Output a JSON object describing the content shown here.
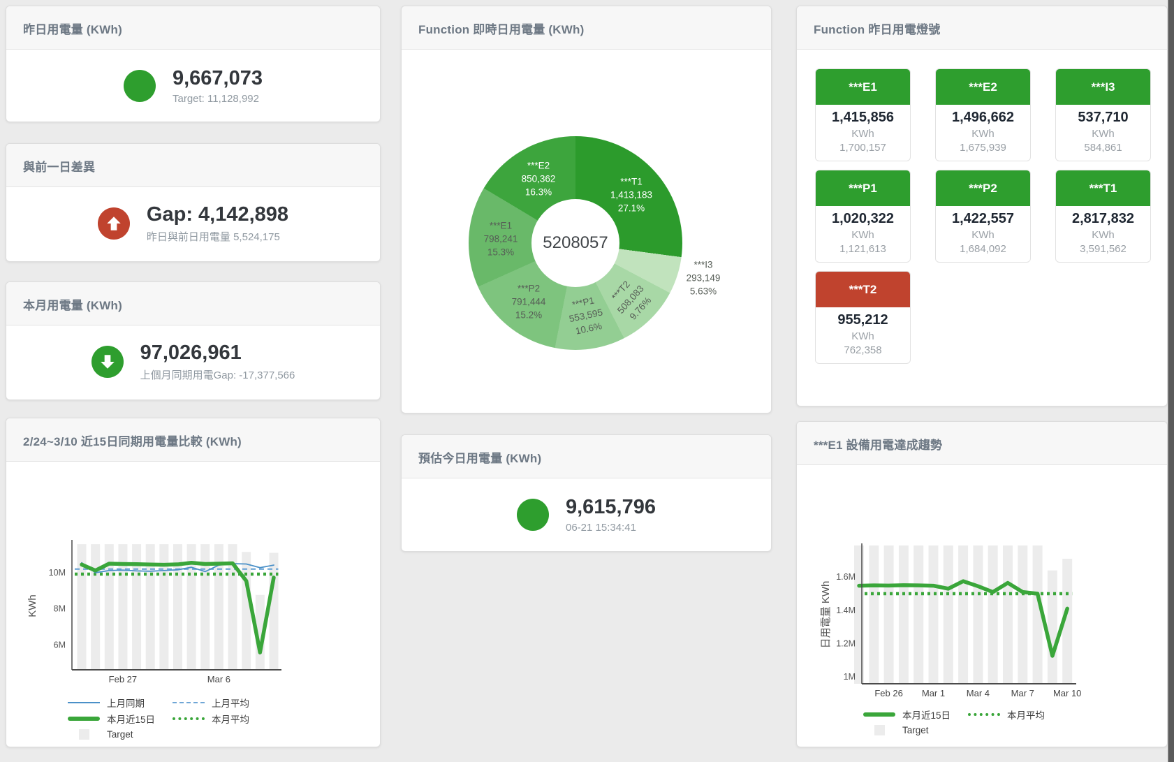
{
  "colors": {
    "green": "#2e9e2e",
    "red": "#c0432e",
    "blue_line": "#4a90c8",
    "blue_dashed": "#6fa6d6",
    "green_line": "#3aa63a",
    "target_bar": "#ececec"
  },
  "panels": {
    "yesterday": {
      "title": "昨日用電量 (KWh)",
      "value": "9,667,073",
      "subtitle": "Target: 11,128,992"
    },
    "gap": {
      "title": "與前一日差異",
      "value": "Gap: 4,142,898",
      "subtitle": "昨日與前日用電量 5,524,175"
    },
    "month": {
      "title": "本月用電量 (KWh)",
      "value": "97,026,961",
      "subtitle": "上個月同期用電Gap: -17,377,566"
    },
    "estimate": {
      "title": "預估今日用電量 (KWh)",
      "value": "9,615,796",
      "subtitle": "06-21 15:34:41"
    },
    "lights": {
      "title": "Function 昨日用電燈號",
      "cards": [
        {
          "label": "***E1",
          "value": "1,415,856",
          "unit": "KWh",
          "target": "1,700,157",
          "status": "green"
        },
        {
          "label": "***E2",
          "value": "1,496,662",
          "unit": "KWh",
          "target": "1,675,939",
          "status": "green"
        },
        {
          "label": "***I3",
          "value": "537,710",
          "unit": "KWh",
          "target": "584,861",
          "status": "green"
        },
        {
          "label": "***P1",
          "value": "1,020,322",
          "unit": "KWh",
          "target": "1,121,613",
          "status": "green"
        },
        {
          "label": "***P2",
          "value": "1,422,557",
          "unit": "KWh",
          "target": "1,684,092",
          "status": "green"
        },
        {
          "label": "***T1",
          "value": "2,817,832",
          "unit": "KWh",
          "target": "3,591,562",
          "status": "green"
        },
        {
          "label": "***T2",
          "value": "955,212",
          "unit": "KWh",
          "target": "762,358",
          "status": "red"
        }
      ]
    }
  },
  "chart_data": [
    {
      "id": "compare15",
      "type": "line+bar",
      "title": "2/24~3/10 近15日同期用電量比較 (KWh)",
      "ylabel": "KWh",
      "unit": "KWh (millions)",
      "x_categories": [
        "2/24",
        "2/25",
        "2/26",
        "2/27",
        "2/28",
        "3/1",
        "3/2",
        "3/3",
        "3/4",
        "3/5",
        "3/6",
        "3/7",
        "3/8",
        "3/9",
        "3/10"
      ],
      "x_ticks": [
        {
          "label": "Feb 27",
          "day": 4
        },
        {
          "label": "Mar 6",
          "day": 11
        }
      ],
      "y_ticks": [
        {
          "label": "10M",
          "v": 10
        },
        {
          "label": "8M",
          "v": 8
        },
        {
          "label": "6M",
          "v": 6
        }
      ],
      "ylim_m": [
        4.62,
        11.7
      ],
      "series": [
        {
          "name": "上月同期",
          "style": "line-thin",
          "color": "#4a90c8",
          "values_m": [
            10.55,
            10.0,
            10.12,
            10.14,
            10.1,
            10.08,
            10.12,
            10.16,
            10.3,
            10.06,
            10.42,
            10.5,
            10.48,
            10.28,
            10.42
          ]
        },
        {
          "name": "上月平均",
          "style": "line-dashed",
          "color": "#6fa6d6",
          "value_m": 10.2
        },
        {
          "name": "本月近15日",
          "style": "line-thick",
          "color": "#3aa63a",
          "values_m": [
            10.45,
            10.12,
            10.5,
            10.48,
            10.47,
            10.45,
            10.44,
            10.46,
            10.55,
            10.48,
            10.5,
            10.52,
            9.54,
            5.58,
            9.73
          ]
        },
        {
          "name": "本月平均",
          "style": "line-dotted",
          "color": "#3aa63a",
          "value_m": 9.92
        },
        {
          "name": "Target",
          "style": "bar",
          "color": "#ececec",
          "values_m": [
            11.58,
            11.58,
            11.58,
            11.58,
            11.58,
            11.58,
            11.58,
            11.58,
            11.58,
            11.58,
            11.58,
            11.58,
            11.15,
            8.77,
            11.1
          ]
        }
      ]
    },
    {
      "id": "realtime-donut",
      "type": "pie",
      "title": "Function 即時日用電量 (KWh)",
      "center_total": "5208057",
      "unit": "KWh",
      "slices": [
        {
          "name": "***T1",
          "value": "1,413,183",
          "value_num": 1413183,
          "pct": "27.1%",
          "share": 27.1,
          "color": "#2c9b2c",
          "label_style": "light"
        },
        {
          "name": "***I3",
          "value": "293,149",
          "value_num": 293149,
          "pct": "5.63%",
          "share": 5.63,
          "color": "#c1e3bd",
          "label_style": "dark"
        },
        {
          "name": "***T2",
          "value": "508,083",
          "value_num": 508083,
          "pct": "9.76%",
          "share": 9.76,
          "color": "#a8d8a6",
          "label_style": "dark"
        },
        {
          "name": "***P1",
          "value": "553,595",
          "value_num": 553595,
          "pct": "10.6%",
          "share": 10.6,
          "color": "#93ce93",
          "label_style": "dark"
        },
        {
          "name": "***P2",
          "value": "791,444",
          "value_num": 791444,
          "pct": "15.2%",
          "share": 15.2,
          "color": "#7ec47e",
          "label_style": "dark"
        },
        {
          "name": "***E1",
          "value": "798,241",
          "value_num": 798241,
          "pct": "15.3%",
          "share": 15.3,
          "color": "#69b969",
          "label_style": "dark"
        },
        {
          "name": "***E2",
          "value": "850,362",
          "value_num": 850362,
          "pct": "16.3%",
          "share": 16.3,
          "color": "#3da53d",
          "label_style": "light"
        }
      ]
    },
    {
      "id": "trend-e1",
      "type": "line+bar",
      "title": "***E1 設備用電達成趨勢",
      "ylabel": "日用電量 KWh",
      "unit": "KWh (millions)",
      "x_categories": [
        "2/24",
        "2/25",
        "2/26",
        "2/27",
        "2/28",
        "3/1",
        "3/2",
        "3/3",
        "3/4",
        "3/5",
        "3/6",
        "3/7",
        "3/8",
        "3/9",
        "3/10"
      ],
      "x_ticks": [
        {
          "label": "Feb 26",
          "day": 3
        },
        {
          "label": "Mar 1",
          "day": 6
        },
        {
          "label": "Mar 4",
          "day": 9
        },
        {
          "label": "Mar 7",
          "day": 12
        },
        {
          "label": "Mar 10",
          "day": 15
        }
      ],
      "y_ticks": [
        {
          "label": "1.6M",
          "v": 1.6
        },
        {
          "label": "1.4M",
          "v": 1.4
        },
        {
          "label": "1.2M",
          "v": 1.2
        },
        {
          "label": "1M",
          "v": 1.0
        }
      ],
      "ylim_m": [
        0.958,
        1.79
      ],
      "series": [
        {
          "name": "本月近15日",
          "style": "line-thick",
          "color": "#3aa63a",
          "values_m": [
            1.548,
            1.55,
            1.549,
            1.551,
            1.55,
            1.548,
            1.53,
            1.575,
            1.545,
            1.51,
            1.565,
            1.51,
            1.5,
            1.126,
            1.41
          ]
        },
        {
          "name": "本月平均",
          "style": "line-dotted",
          "color": "#3aa63a",
          "value_m": 1.5
        },
        {
          "name": "Target",
          "style": "bar",
          "color": "#ececec",
          "values_m": [
            1.79,
            1.79,
            1.79,
            1.79,
            1.79,
            1.79,
            1.79,
            1.79,
            1.79,
            1.79,
            1.79,
            1.79,
            1.79,
            1.64,
            1.71
          ]
        }
      ]
    }
  ]
}
